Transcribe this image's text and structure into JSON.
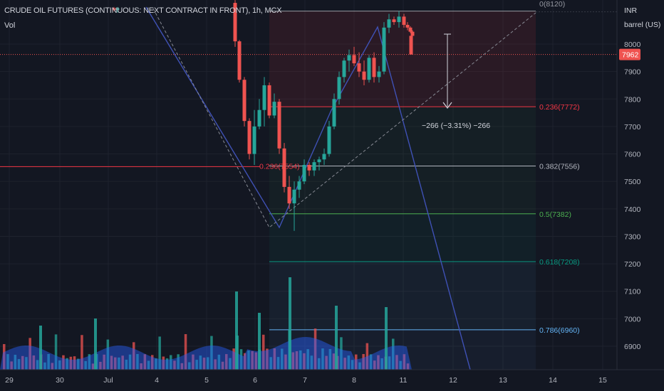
{
  "header": {
    "symbol": "CRUDE OIL FUTURES (CONTINUOUS: NEXT CONTRACT IN FRONT), 1h, MCX",
    "volume_label": "Vol"
  },
  "price_axis": {
    "currency": "INR",
    "unit": "barrel (US)",
    "ticks": [
      "8000",
      "7900",
      "7800",
      "7700",
      "7600",
      "7500",
      "7400",
      "7300",
      "7200",
      "7100",
      "7000",
      "6900"
    ],
    "last_price": "7962"
  },
  "time_axis": {
    "ticks": [
      "29",
      "30",
      "Jul",
      "4",
      "5",
      "6",
      "7",
      "8",
      "11",
      "12",
      "13",
      "14",
      "15"
    ]
  },
  "fib_levels": [
    {
      "label": "0(8120)",
      "price": 8120,
      "color": "#9598a1"
    },
    {
      "label": "0.236(7772)",
      "price": 7772,
      "color": "#f23645"
    },
    {
      "label": "0.382(7556)",
      "price": 7556,
      "color": "#b2b5be"
    },
    {
      "label": "0.5(7382)",
      "price": 7382,
      "color": "#4caf50"
    },
    {
      "label": "0.618(7208)",
      "price": 7208,
      "color": "#089981"
    },
    {
      "label": "0.786(6960)",
      "price": 6960,
      "color": "#64b5f6"
    }
  ],
  "left_fib_label": "0.236(7554)",
  "measure": {
    "label": "−266 (−3.31%) −266"
  },
  "colors": {
    "up": "#26a69a",
    "down": "#ef5350",
    "pattern": "#3f51b5",
    "bg": "#131722"
  },
  "chart_data": {
    "type": "candlestick",
    "title": "CRUDE OIL FUTURES (CONTINUOUS: NEXT CONTRACT IN FRONT), 1h, MCX",
    "ylabel": "INR barrel (US)",
    "ylim": [
      6825,
      8195
    ],
    "dates": [
      "29",
      "30",
      "Jul",
      "4",
      "5",
      "6",
      "7",
      "8",
      "11",
      "12",
      "13",
      "14",
      "15"
    ],
    "candles": [
      [
        8130,
        8135,
        8120,
        8125
      ],
      [
        8125,
        8135,
        8115,
        8130
      ],
      [
        8150,
        8160,
        7990,
        8010
      ],
      [
        8010,
        8015,
        7860,
        7870
      ],
      [
        7870,
        7880,
        7700,
        7720
      ],
      [
        7720,
        7730,
        7580,
        7600
      ],
      [
        7600,
        7760,
        7560,
        7700
      ],
      [
        7700,
        7800,
        7690,
        7760
      ],
      [
        7760,
        7880,
        7700,
        7850
      ],
      [
        7850,
        7860,
        7730,
        7740
      ],
      [
        7740,
        7820,
        7730,
        7790
      ],
      [
        7790,
        7800,
        7600,
        7620
      ],
      [
        7620,
        7640,
        7460,
        7480
      ],
      [
        7480,
        7520,
        7400,
        7420
      ],
      [
        7420,
        7500,
        7320,
        7470
      ],
      [
        7470,
        7520,
        7440,
        7500
      ],
      [
        7500,
        7580,
        7490,
        7560
      ],
      [
        7560,
        7570,
        7520,
        7540
      ],
      [
        7540,
        7580,
        7520,
        7570
      ],
      [
        7570,
        7590,
        7540,
        7580
      ],
      [
        7580,
        7620,
        7560,
        7600
      ],
      [
        7600,
        7720,
        7590,
        7700
      ],
      [
        7700,
        7820,
        7690,
        7800
      ],
      [
        7800,
        7900,
        7780,
        7880
      ],
      [
        7880,
        7950,
        7860,
        7940
      ],
      [
        7940,
        7980,
        7900,
        7960
      ],
      [
        7960,
        7990,
        7920,
        7930
      ],
      [
        7930,
        7970,
        7880,
        7900
      ],
      [
        7900,
        7940,
        7850,
        7870
      ],
      [
        7870,
        7960,
        7860,
        7950
      ],
      [
        7950,
        7970,
        7860,
        7880
      ],
      [
        7880,
        7920,
        7860,
        7900
      ],
      [
        7900,
        8080,
        7890,
        8060
      ],
      [
        8060,
        8110,
        8040,
        8090
      ],
      [
        8090,
        8100,
        8070,
        8080
      ],
      [
        8080,
        8120,
        8060,
        8100
      ],
      [
        8100,
        8110,
        8060,
        8070
      ],
      [
        8070,
        8080,
        8050,
        8060
      ],
      [
        8060,
        8065,
        8040,
        8045
      ],
      [
        8045,
        8050,
        8020,
        8030
      ],
      [
        8030,
        8040,
        7970,
        7962
      ]
    ],
    "volume_note": "volume histogram shown in lower pane"
  }
}
